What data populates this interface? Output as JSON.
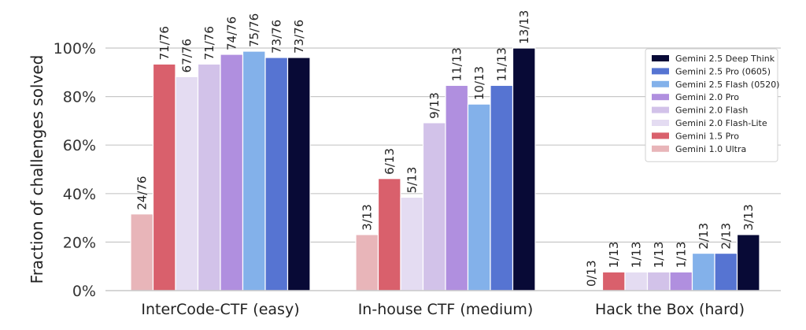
{
  "chart_data": {
    "type": "bar",
    "ylabel": "Fraction of challenges solved",
    "ylim": [
      0,
      100
    ],
    "yticks": [
      0,
      20,
      40,
      60,
      80,
      100
    ],
    "ytick_labels": [
      "0%",
      "20%",
      "40%",
      "60%",
      "80%",
      "100%"
    ],
    "grid": "horizontal",
    "legend_position": "top-right",
    "categories": [
      "InterCode-CTF (easy)",
      "In-house CTF (medium)",
      "Hack the Box (hard)"
    ],
    "series": [
      {
        "name": "Gemini 1.0 Ultra",
        "color": "#e8b5b9",
        "values": [
          31.6,
          23.1,
          null
        ],
        "labels": [
          "24/76",
          "3/13",
          ""
        ]
      },
      {
        "name": "Gemini 1.5 Pro",
        "color": "#d9606c",
        "values": [
          93.4,
          46.2,
          7.7
        ],
        "labels": [
          "71/76",
          "6/13",
          "1/13"
        ]
      },
      {
        "name": "Gemini 2.0 Flash-Lite",
        "color": "#e4dcf2",
        "values": [
          88.2,
          38.5,
          7.7
        ],
        "labels": [
          "67/76",
          "5/13",
          "1/13"
        ]
      },
      {
        "name": "Gemini 2.0 Flash",
        "color": "#d2c2e9",
        "values": [
          93.4,
          69.2,
          7.7
        ],
        "labels": [
          "71/76",
          "9/13",
          "1/13"
        ]
      },
      {
        "name": "Gemini 2.0 Pro",
        "color": "#b08fdf",
        "values": [
          97.4,
          84.6,
          7.7
        ],
        "labels": [
          "74/76",
          "11/13",
          "1/13"
        ]
      },
      {
        "name": "Gemini 2.5 Flash (0520)",
        "color": "#83b1ea",
        "values": [
          98.7,
          76.9,
          15.4
        ],
        "labels": [
          "75/76",
          "10/13",
          "2/13"
        ]
      },
      {
        "name": "Gemini 2.5 Pro (0605)",
        "color": "#5674d2",
        "values": [
          96.1,
          84.6,
          15.4
        ],
        "labels": [
          "73/76",
          "11/13",
          "2/13"
        ]
      },
      {
        "name": "Gemini 2.5 Deep Think",
        "color": "#080a36",
        "values": [
          96.1,
          100,
          23.1
        ],
        "labels": [
          "73/76",
          "13/13",
          "3/13"
        ]
      }
    ],
    "extra_labels": [
      {
        "category_index": 2,
        "series_index": 0,
        "text": "0/13"
      }
    ],
    "legend_order": [
      7,
      6,
      5,
      4,
      3,
      2,
      1,
      0
    ]
  }
}
